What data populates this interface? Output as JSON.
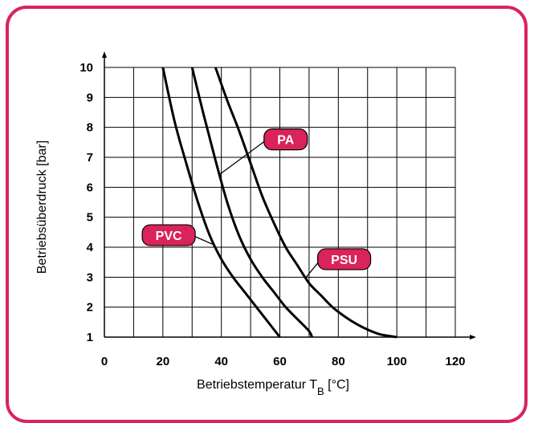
{
  "chart_data": {
    "type": "line",
    "title": "",
    "xlabel_main": "Betriebstemperatur T",
    "xlabel_sub": "B",
    "xlabel_unit": " [°C]",
    "ylabel": "Betriebsüberdruck [bar]",
    "xlim": [
      0,
      120
    ],
    "ylim": [
      1,
      10
    ],
    "x_ticks": [
      "0",
      "20",
      "40",
      "60",
      "80",
      "100",
      "120"
    ],
    "y_ticks": [
      "1",
      "2",
      "3",
      "4",
      "5",
      "6",
      "7",
      "8",
      "9",
      "10"
    ],
    "grid": true,
    "grid_x_step": 10,
    "series": [
      {
        "name": "PVC",
        "points": [
          [
            20,
            10
          ],
          [
            24,
            8.2
          ],
          [
            28,
            6.8
          ],
          [
            32,
            5.5
          ],
          [
            36,
            4.4
          ],
          [
            40,
            3.6
          ],
          [
            44,
            3.0
          ],
          [
            48,
            2.5
          ],
          [
            52,
            2.0
          ],
          [
            56,
            1.5
          ],
          [
            60,
            1.0
          ]
        ]
      },
      {
        "name": "PA",
        "points": [
          [
            30,
            10
          ],
          [
            34,
            8.4
          ],
          [
            38,
            6.9
          ],
          [
            42,
            5.5
          ],
          [
            46,
            4.4
          ],
          [
            50,
            3.6
          ],
          [
            54,
            3.0
          ],
          [
            58,
            2.5
          ],
          [
            62,
            2.0
          ],
          [
            66,
            1.6
          ],
          [
            70,
            1.2
          ],
          [
            71,
            1.0
          ]
        ]
      },
      {
        "name": "PSU",
        "points": [
          [
            38,
            10
          ],
          [
            42,
            8.9
          ],
          [
            46,
            7.9
          ],
          [
            50,
            6.8
          ],
          [
            54,
            5.7
          ],
          [
            58,
            4.8
          ],
          [
            62,
            4.0
          ],
          [
            66,
            3.4
          ],
          [
            70,
            2.8
          ],
          [
            74,
            2.4
          ],
          [
            78,
            2.0
          ],
          [
            82,
            1.7
          ],
          [
            86,
            1.45
          ],
          [
            90,
            1.25
          ],
          [
            94,
            1.1
          ],
          [
            98,
            1.03
          ],
          [
            100,
            1.0
          ]
        ]
      }
    ],
    "labels": [
      {
        "text": "PVC",
        "series": "PVC",
        "anchor_x": 22,
        "anchor_y": 4.4,
        "target_x": 37,
        "target_y": 4.1
      },
      {
        "text": "PA",
        "series": "PA",
        "anchor_x": 62,
        "anchor_y": 7.6,
        "target_x": 39,
        "target_y": 6.4
      },
      {
        "text": "PSU",
        "series": "PSU",
        "anchor_x": 82,
        "anchor_y": 3.6,
        "target_x": 69,
        "target_y": 3.0
      }
    ],
    "colors": {
      "frame": "#d9235a",
      "badge": "#d9235a",
      "line": "#000000",
      "grid": "#000000"
    }
  }
}
